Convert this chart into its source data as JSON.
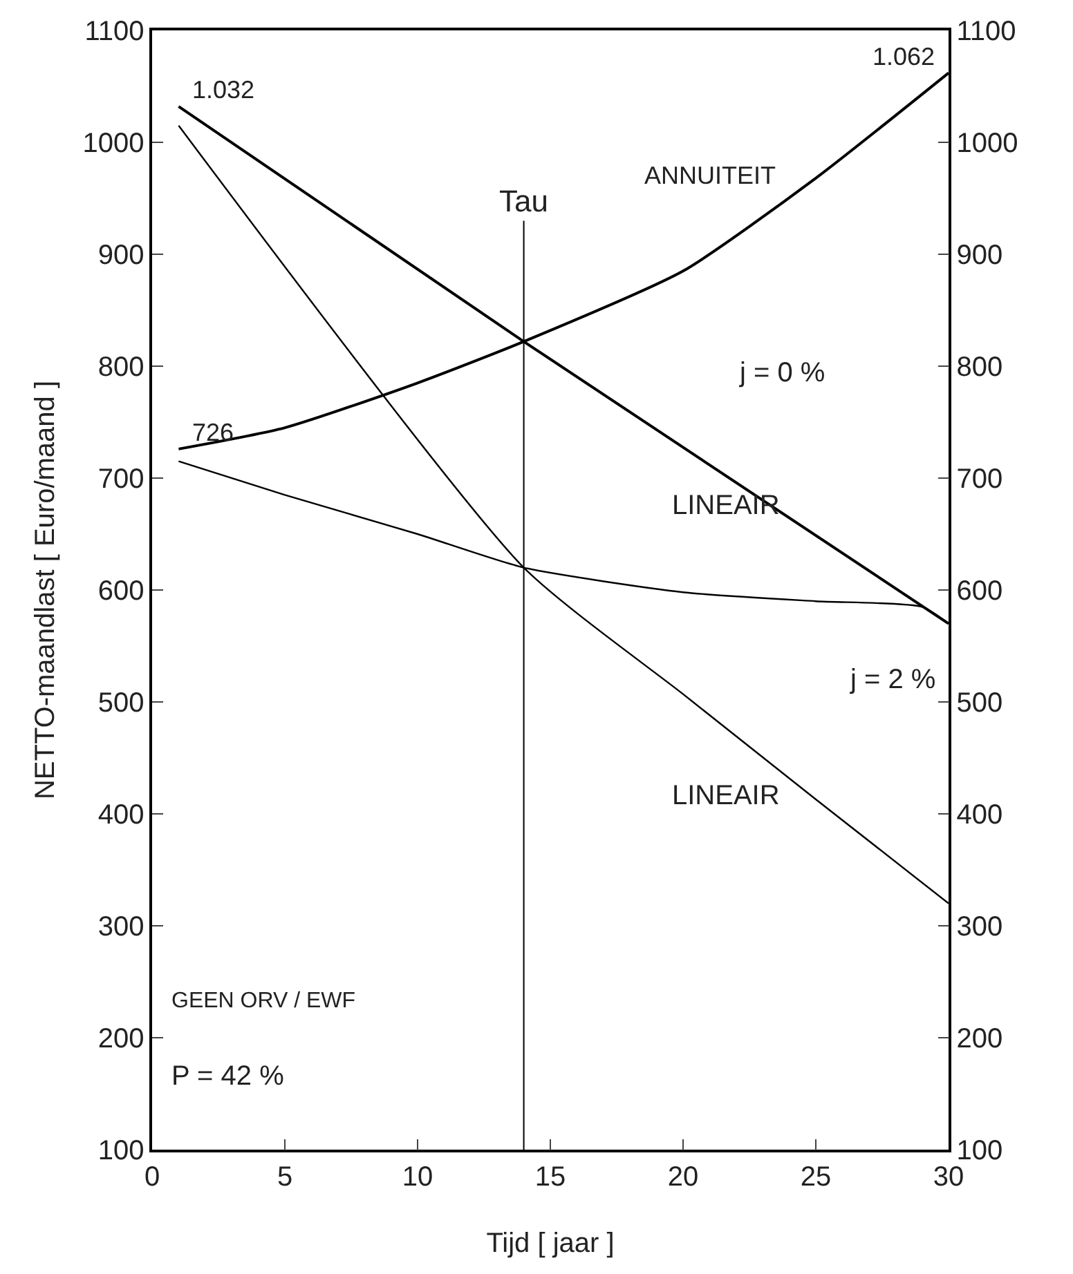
{
  "chart_data": {
    "type": "line",
    "xlabel": "Tijd [ jaar ]",
    "ylabel": "NETTO-maandlast [ Euro/maand ]",
    "xlim": [
      0,
      30
    ],
    "xticks": [
      0,
      5,
      10,
      15,
      20,
      25,
      30
    ],
    "ylim": [
      100,
      1100
    ],
    "yticks": [
      100,
      200,
      300,
      400,
      500,
      600,
      700,
      800,
      900,
      1000,
      1100
    ],
    "y2lim": [
      100,
      1100
    ],
    "y2ticks": [
      100,
      200,
      300,
      400,
      500,
      600,
      700,
      800,
      900,
      1000,
      1100
    ],
    "series": [
      {
        "color": "#000000",
        "x": [
          1,
          14,
          30
        ],
        "values": [
          1032,
          822,
          570
        ]
      },
      {
        "color": "#000000",
        "x": [
          1,
          5,
          10,
          14,
          20,
          25,
          30
        ],
        "values": [
          726,
          745,
          785,
          822,
          885,
          968,
          1062
        ]
      },
      {
        "color": "#000000",
        "x": [
          1,
          14,
          20,
          25,
          30
        ],
        "values": [
          1015,
          620,
          507,
          413,
          320
        ]
      },
      {
        "color": "#000000",
        "x": [
          1,
          5,
          10,
          14,
          20,
          25,
          29,
          30
        ],
        "values": [
          715,
          685,
          650,
          620,
          598,
          590,
          585,
          570
        ]
      }
    ],
    "ref_lines": [
      {
        "axis": "x",
        "value": 14,
        "label": "Tau"
      }
    ],
    "annotations": [
      {
        "text": "1.032",
        "x": 1,
        "y": 1032
      },
      {
        "text": "1.062",
        "x": 30,
        "y": 1062
      },
      {
        "text": "726",
        "x": 1,
        "y": 726
      },
      {
        "text": "ANNUITEIT",
        "x": 24,
        "y": 955
      },
      "j = 0 %",
      "LINEAIR",
      "j = 2 %",
      "LINEAIR",
      "GEEN ORV / EWF",
      "P = 42 %"
    ],
    "marker": "none",
    "line_style": "solid"
  }
}
